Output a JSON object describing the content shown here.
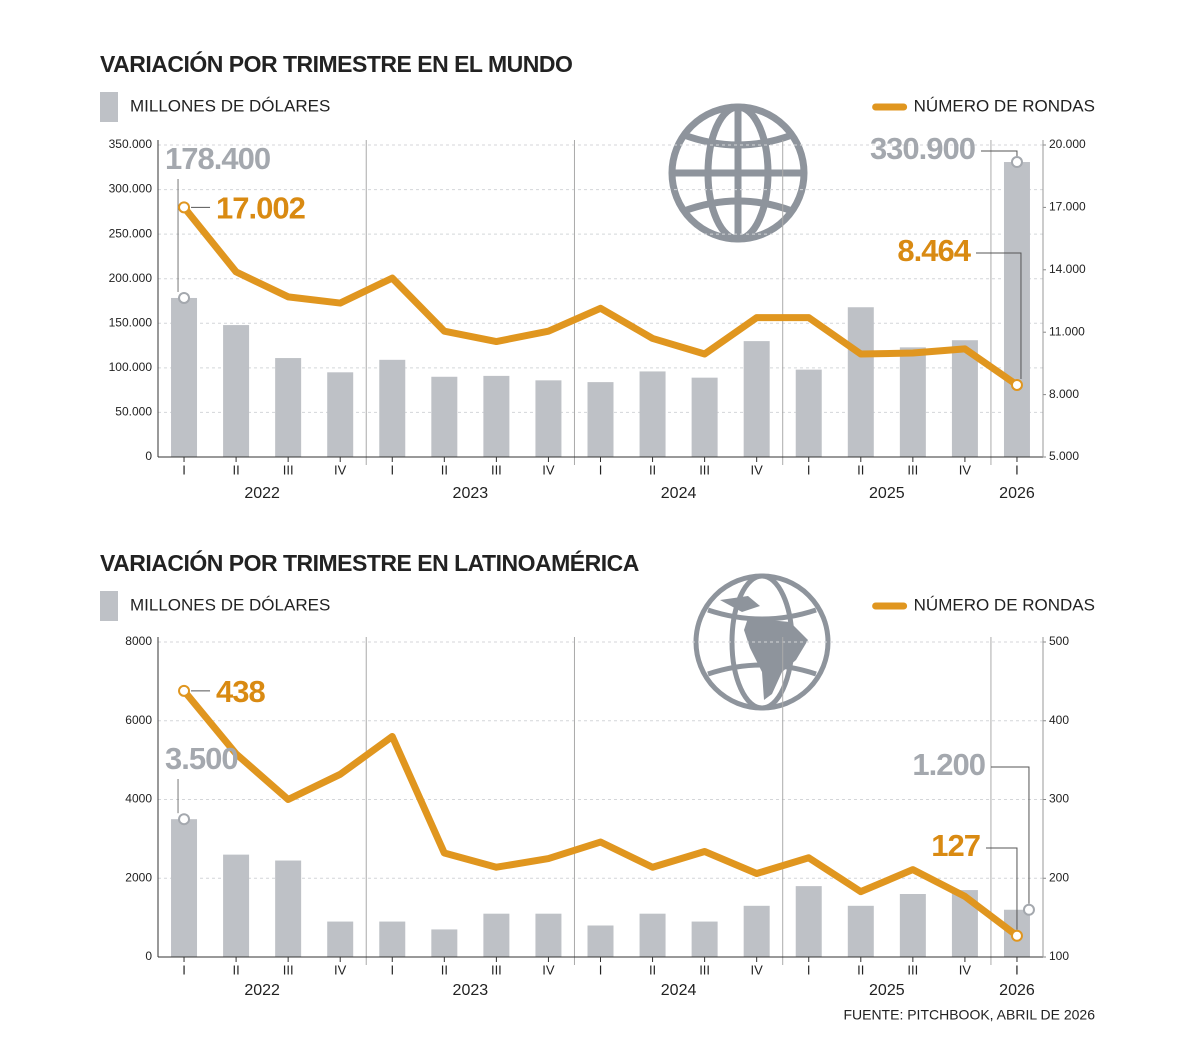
{
  "chart_data": [
    {
      "type": "combo",
      "title": "VARIACIÓN POR TRIMESTRE EN EL MUNDO",
      "categories": [
        "I",
        "II",
        "III",
        "IV",
        "I",
        "II",
        "III",
        "IV",
        "I",
        "II",
        "III",
        "IV",
        "I",
        "II",
        "III",
        "IV",
        "I"
      ],
      "category_groups": [
        {
          "name": "2022",
          "size": 4
        },
        {
          "name": "2023",
          "size": 4
        },
        {
          "name": "2024",
          "size": 4
        },
        {
          "name": "2025",
          "size": 4
        },
        {
          "name": "2026",
          "size": 1
        }
      ],
      "ylim": [
        0,
        350000
      ],
      "yticks": [
        0,
        {
          "value": 50000,
          "label": "50.000"
        },
        {
          "value": 100000,
          "label": "100.000"
        },
        {
          "value": 150000,
          "label": "150.000"
        },
        {
          "value": 200000,
          "label": "200.000"
        },
        {
          "value": 250000,
          "label": "250.000"
        },
        {
          "value": 300000,
          "label": "300.000"
        },
        {
          "value": 350000,
          "label": "350.000"
        }
      ],
      "y2lim": [
        5000,
        20000
      ],
      "y2ticks": [
        {
          "value": 5000,
          "label": "5.000"
        },
        {
          "value": 8000,
          "label": "8.000"
        },
        {
          "value": 11000,
          "label": "11.000"
        },
        {
          "value": 14000,
          "label": "14.000"
        },
        {
          "value": 17000,
          "label": "17.000"
        },
        {
          "value": 20000,
          "label": "20.000"
        }
      ],
      "grid": true,
      "series": [
        {
          "name": "MILLONES DE DÓLARES",
          "type": "bar",
          "color": "#bec1c6",
          "values": [
            178400,
            148000,
            111000,
            95000,
            109000,
            90000,
            91000,
            86000,
            84000,
            96000,
            89000,
            130000,
            98000,
            168000,
            123000,
            131000,
            330900
          ],
          "value_labels": [
            "178.400",
            null,
            null,
            null,
            null,
            null,
            null,
            null,
            null,
            null,
            null,
            null,
            null,
            null,
            null,
            null,
            "330.900"
          ]
        },
        {
          "name": "NÚMERO DE RONDAS",
          "type": "line",
          "axis": "y2",
          "color": "#e0961f",
          "values": [
            17002,
            13900,
            12700,
            12400,
            13600,
            11050,
            10550,
            11050,
            12150,
            10700,
            9950,
            11700,
            11700,
            9950,
            10000,
            10200,
            8464
          ],
          "value_labels": [
            "17.002",
            null,
            null,
            null,
            null,
            null,
            null,
            null,
            null,
            null,
            null,
            null,
            null,
            null,
            null,
            null,
            "8.464"
          ]
        }
      ]
    },
    {
      "type": "combo",
      "title": "VARIACIÓN POR TRIMESTRE EN LATINOAMÉRICA",
      "categories": [
        "I",
        "II",
        "III",
        "IV",
        "I",
        "II",
        "III",
        "IV",
        "I",
        "II",
        "III",
        "IV",
        "I",
        "II",
        "III",
        "IV",
        "I"
      ],
      "category_groups": [
        {
          "name": "2022",
          "size": 4
        },
        {
          "name": "2023",
          "size": 4
        },
        {
          "name": "2024",
          "size": 4
        },
        {
          "name": "2025",
          "size": 4
        },
        {
          "name": "2026",
          "size": 1
        }
      ],
      "ylim": [
        0,
        8000
      ],
      "yticks": [
        0,
        2000,
        4000,
        6000,
        8000
      ],
      "y2lim": [
        100,
        500
      ],
      "y2ticks": [
        100,
        200,
        300,
        400,
        500
      ],
      "grid": true,
      "series": [
        {
          "name": "MILLONES DE DÓLARES",
          "type": "bar",
          "color": "#bec1c6",
          "values": [
            3500,
            2600,
            2450,
            900,
            900,
            700,
            1100,
            1100,
            800,
            1100,
            900,
            1300,
            1800,
            1300,
            1600,
            1700,
            1200
          ],
          "value_labels": [
            "3.500",
            null,
            null,
            null,
            null,
            null,
            null,
            null,
            null,
            null,
            null,
            null,
            null,
            null,
            null,
            null,
            "1.200"
          ]
        },
        {
          "name": "NÚMERO DE RONDAS",
          "type": "line",
          "axis": "y2",
          "color": "#e0961f",
          "values": [
            438,
            358,
            300,
            332,
            380,
            232,
            214,
            225,
            246,
            214,
            234,
            206,
            226,
            183,
            211,
            177,
            127
          ],
          "value_labels": [
            "438",
            null,
            null,
            null,
            null,
            null,
            null,
            null,
            null,
            null,
            null,
            null,
            null,
            null,
            null,
            null,
            "127"
          ]
        }
      ]
    }
  ],
  "source": "FUENTE: PITCHBOOK, ABRIL DE 2026"
}
